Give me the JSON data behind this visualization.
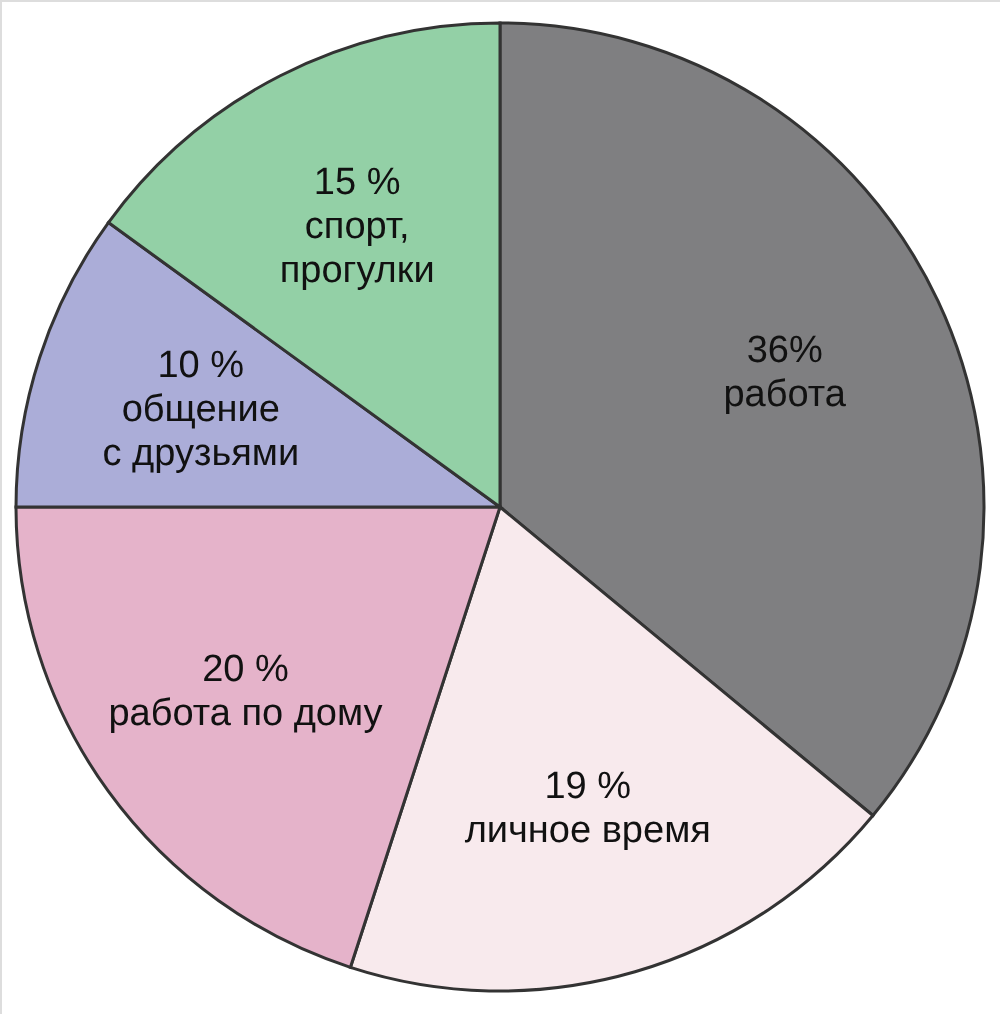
{
  "chart_data": {
    "type": "pie",
    "categories": [
      "работа",
      "личное время",
      "работа по дому",
      "общение с друзьями",
      "спорт, прогулки"
    ],
    "values": [
      36,
      19,
      20,
      10,
      15
    ],
    "colors": [
      "#7f7f81",
      "#f8eaed",
      "#e5b3ca",
      "#abadd8",
      "#93d0a6"
    ],
    "value_labels": [
      "36%",
      "19 %",
      "20 %",
      "10 %",
      "15 %"
    ]
  }
}
